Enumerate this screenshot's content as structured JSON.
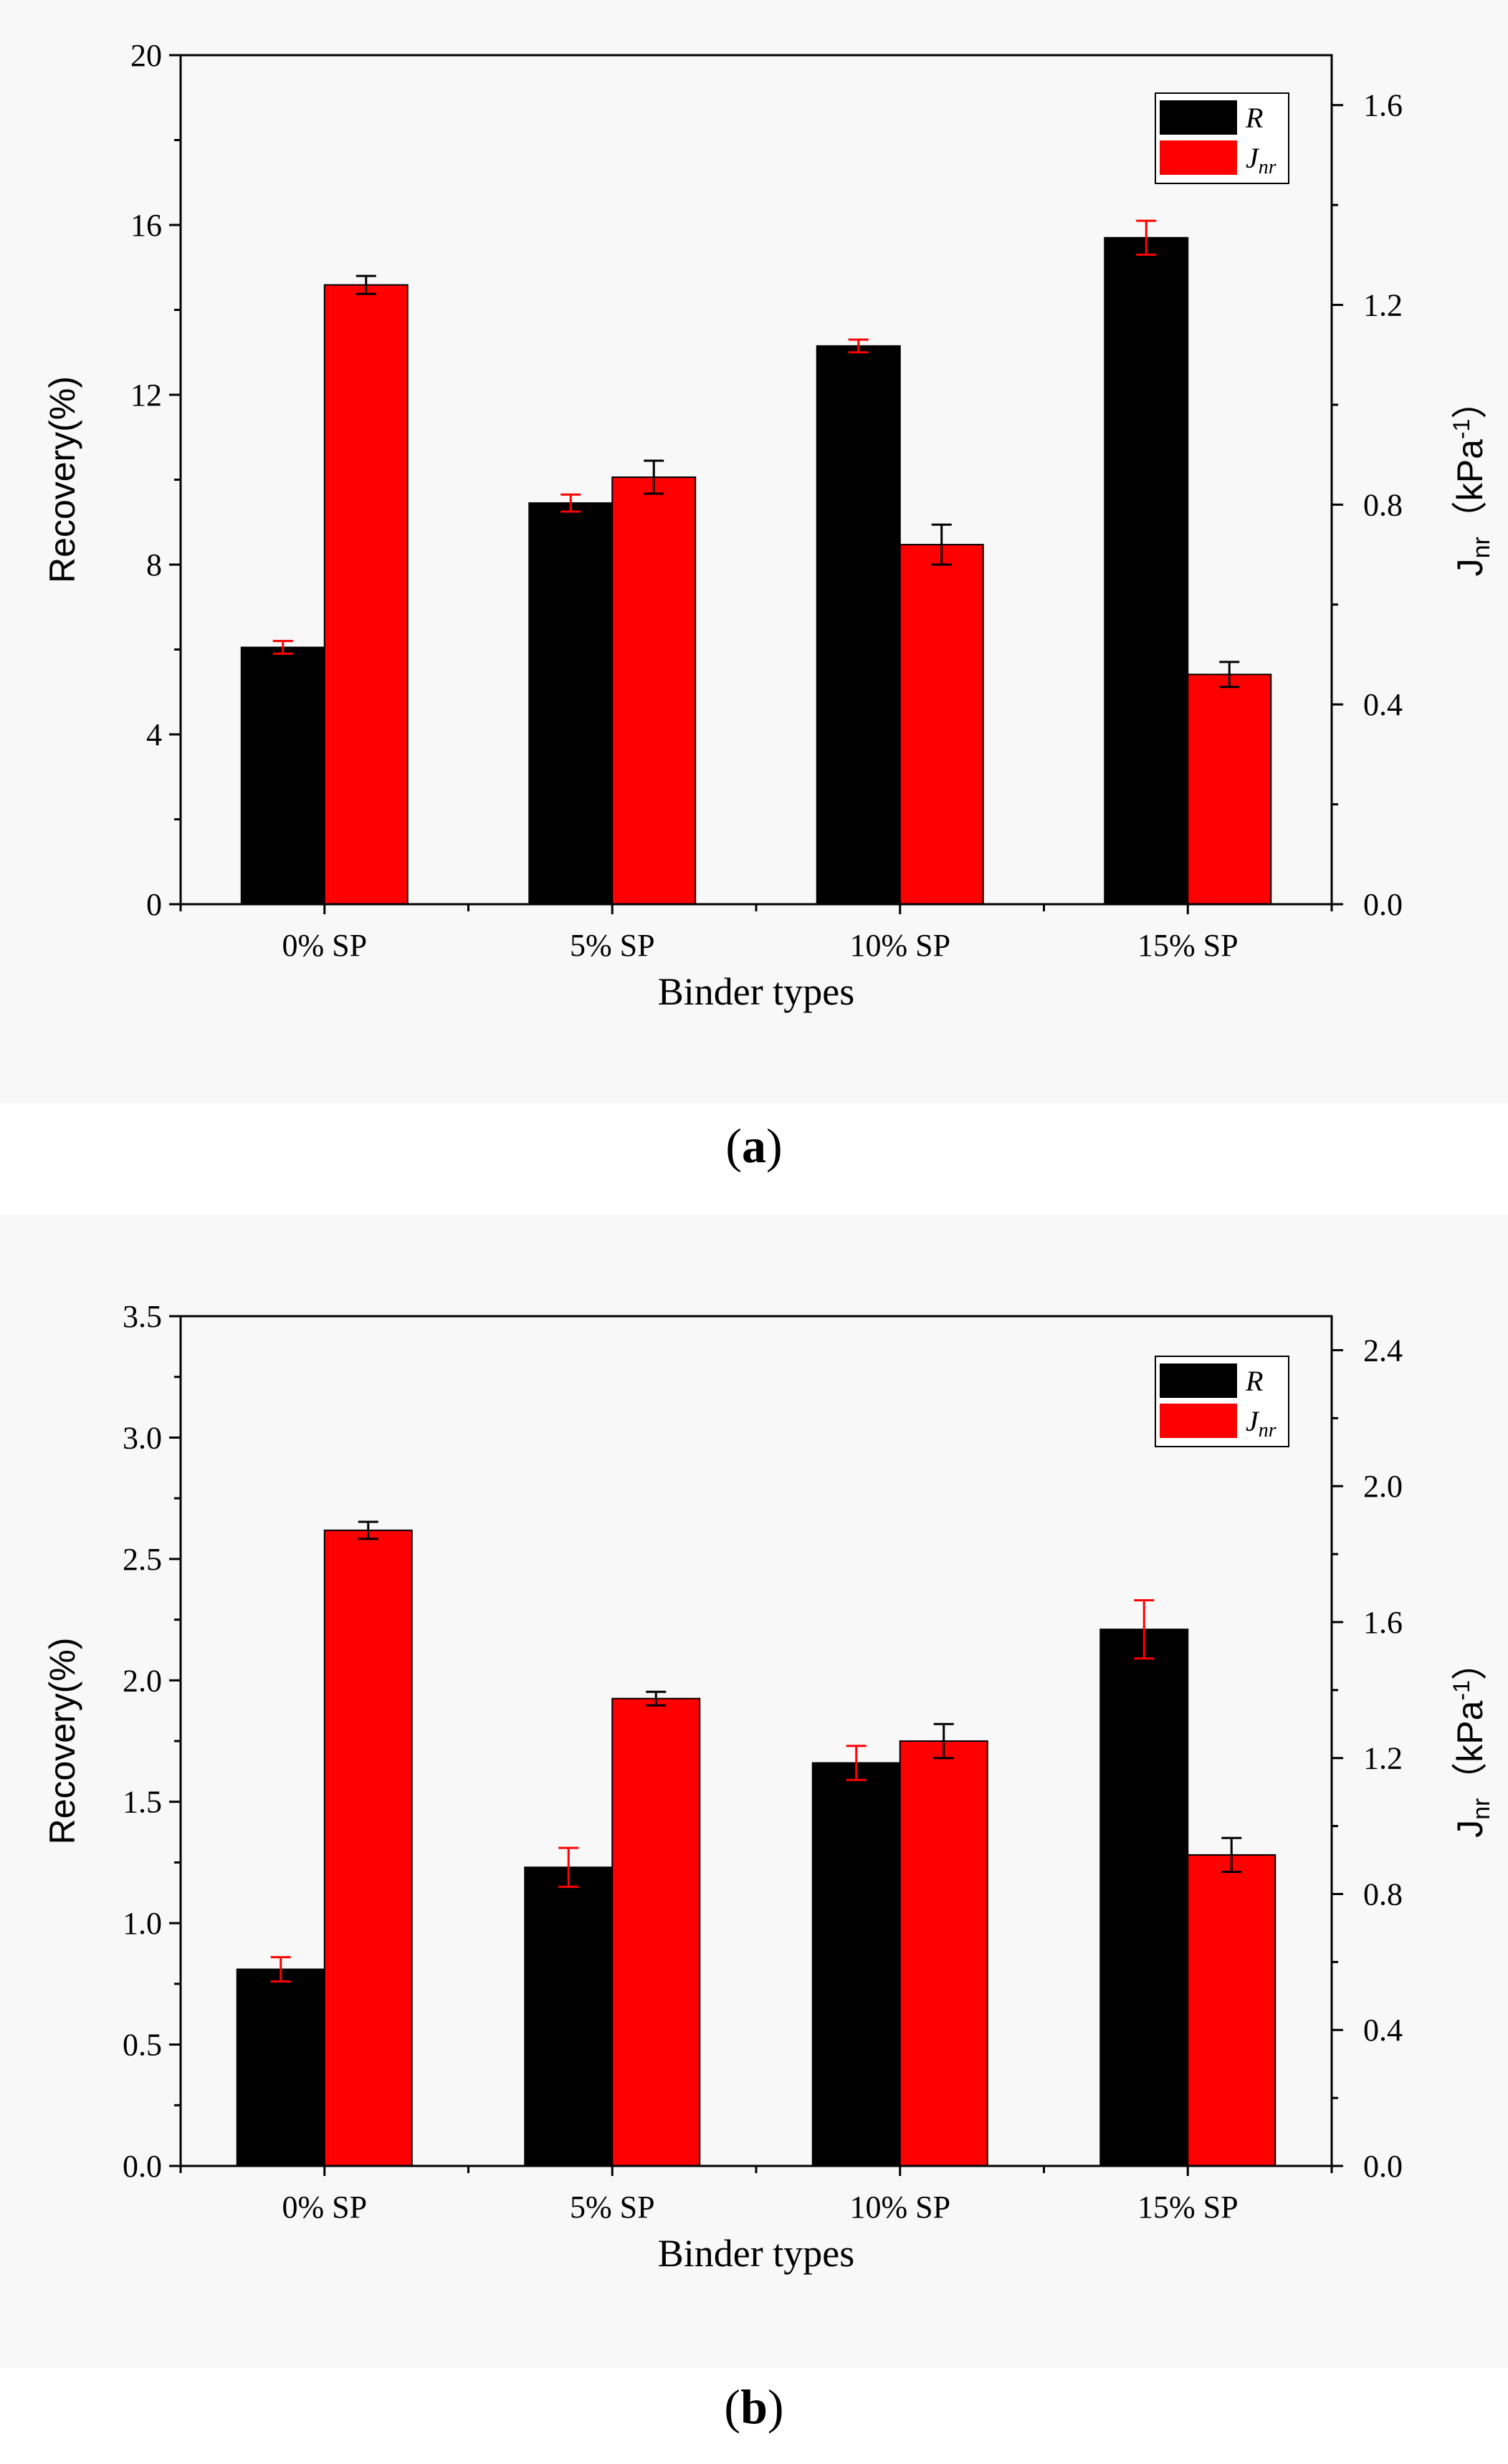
{
  "chart_data": [
    {
      "id": "a",
      "type": "bar",
      "caption_letter": "a",
      "categories": [
        "0% SP",
        "5% SP",
        "10% SP",
        "15% SP"
      ],
      "xlabel": "Binder types",
      "ylabel_left": "Recovery(%)",
      "ylabel_right_main": "J",
      "ylabel_right_sub": "nr",
      "ylabel_right_unit": "（kPa",
      "ylabel_right_sup": "-1",
      "ylabel_right_close": "）",
      "ylim_left": [
        0,
        20
      ],
      "ylim_right": [
        0,
        1.7
      ],
      "yticks_left": [
        0,
        4,
        8,
        12,
        16,
        20
      ],
      "yticks_right": [
        0.0,
        0.4,
        0.8,
        1.2,
        1.6
      ],
      "left_tick_labels": [
        "0",
        "4",
        "8",
        "12",
        "16",
        "20"
      ],
      "right_tick_labels": [
        "0.0",
        "0.4",
        "0.8",
        "1.2",
        "1.6"
      ],
      "legend": {
        "r_label": "R",
        "j_main": "J",
        "j_sub": "nr",
        "position": "top-right"
      },
      "series": [
        {
          "name": "R",
          "axis": "left",
          "color": "#000000",
          "values": [
            6.05,
            9.45,
            13.15,
            15.7
          ],
          "errors": [
            0.15,
            0.2,
            0.15,
            0.4
          ]
        },
        {
          "name": "Jnr",
          "axis": "right",
          "color": "#ff0000",
          "values": [
            1.24,
            0.855,
            0.72,
            0.46
          ],
          "errors": [
            0.018,
            0.033,
            0.04,
            0.025
          ]
        }
      ]
    },
    {
      "id": "b",
      "type": "bar",
      "caption_letter": "b",
      "categories": [
        "0% SP",
        "5% SP",
        "10% SP",
        "15% SP"
      ],
      "xlabel": "Binder types",
      "ylabel_left": "Recovery(%)",
      "ylabel_right_main": "J",
      "ylabel_right_sub": "nr",
      "ylabel_right_unit": "（kPa",
      "ylabel_right_sup": "-1",
      "ylabel_right_close": "）",
      "ylim_left": [
        0,
        3.5
      ],
      "ylim_right": [
        0,
        2.5
      ],
      "yticks_left": [
        0,
        0.5,
        1.0,
        1.5,
        2.0,
        2.5,
        3.0,
        3.5
      ],
      "yticks_right": [
        0.0,
        0.4,
        0.8,
        1.2,
        1.6,
        2.0,
        2.4
      ],
      "left_tick_labels": [
        "0.0",
        "0.5",
        "1.0",
        "1.5",
        "2.0",
        "2.5",
        "3.0",
        "3.5"
      ],
      "right_tick_labels": [
        "0.0",
        "0.4",
        "0.8",
        "1.2",
        "1.6",
        "2.0",
        "2.4"
      ],
      "legend": {
        "r_label": "R",
        "j_main": "J",
        "j_sub": "nr",
        "position": "top-right"
      },
      "series": [
        {
          "name": "R",
          "axis": "left",
          "color": "#000000",
          "values": [
            0.81,
            1.23,
            1.66,
            2.21
          ],
          "errors": [
            0.05,
            0.08,
            0.07,
            0.12
          ]
        },
        {
          "name": "Jnr",
          "axis": "right",
          "color": "#ff0000",
          "values": [
            1.87,
            1.375,
            1.25,
            0.915
          ],
          "errors": [
            0.025,
            0.02,
            0.05,
            0.05
          ]
        }
      ]
    }
  ]
}
